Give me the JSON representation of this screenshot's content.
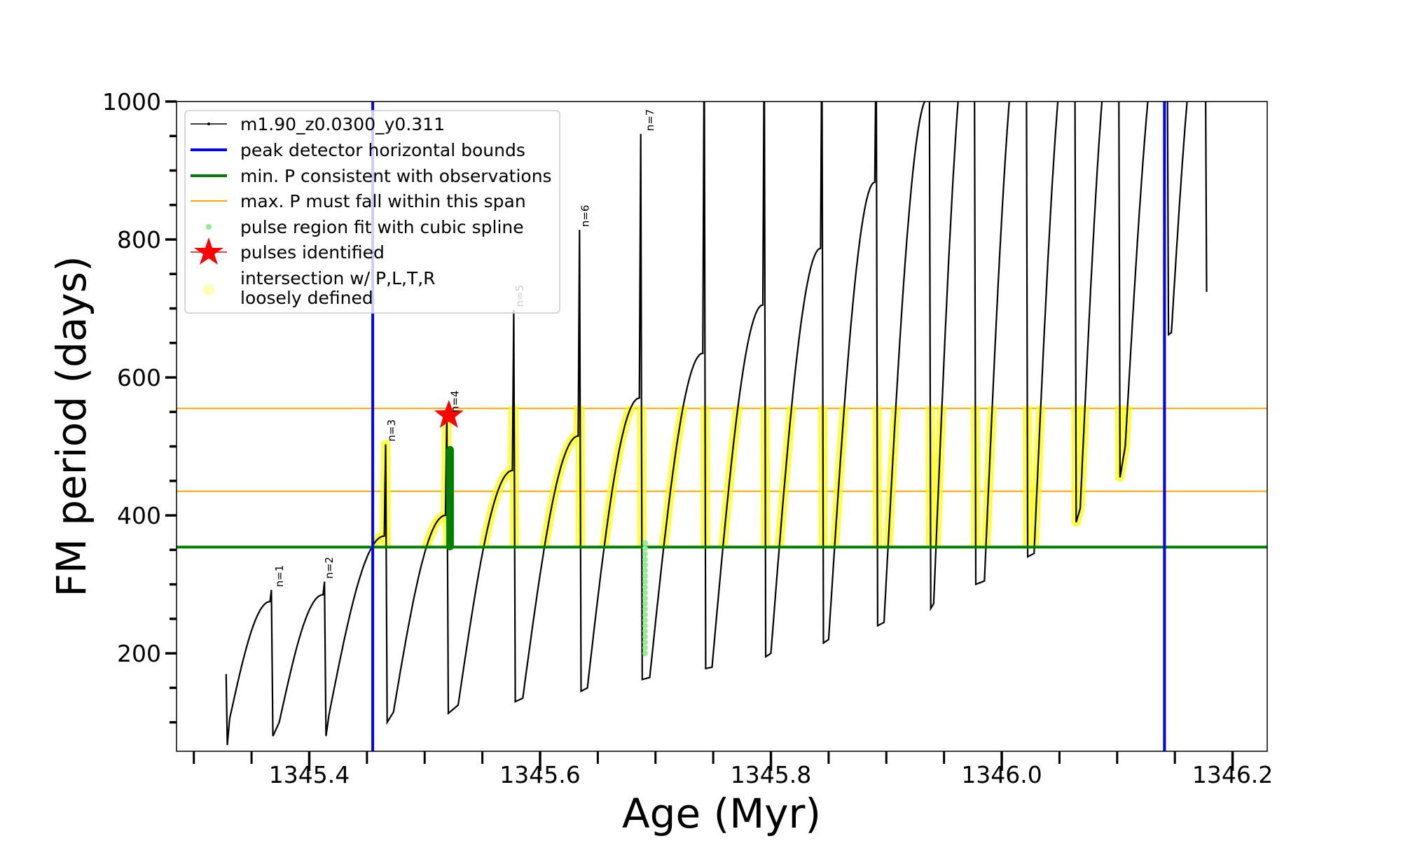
{
  "chart_data": {
    "type": "line",
    "title": "",
    "xlabel": "Age (Myr)",
    "ylabel": "FM period (days)",
    "xlim": [
      1345.285,
      1346.23
    ],
    "ylim": [
      58,
      1000
    ],
    "xticks": [
      1345.4,
      1345.6,
      1345.8,
      1346.0,
      1346.2
    ],
    "xtick_labels": [
      "1345.4",
      "1345.6",
      "1345.8",
      "1346.0",
      "1346.2"
    ],
    "xminor_step": 0.05,
    "yticks": [
      200,
      400,
      600,
      800,
      1000
    ],
    "ytick_labels": [
      "200",
      "400",
      "600",
      "800",
      "1000"
    ],
    "yminor_step": 50,
    "grid": false,
    "legend_position": "upper-left",
    "legend": [
      {
        "label": "m1.90_z0.0300_y0.311",
        "kind": "line-dot",
        "color": "#000000"
      },
      {
        "label": "peak detector horizontal bounds",
        "kind": "thick-line",
        "color": "#0000ff"
      },
      {
        "label": "min. P consistent with observations",
        "kind": "thick-line",
        "color": "#008000"
      },
      {
        "label": "max. P must fall within this span",
        "kind": "thin-line",
        "color": "#ffa500"
      },
      {
        "label": "pulse region fit with cubic spline",
        "kind": "dot",
        "color": "#90ee90"
      },
      {
        "label": "pulses identified",
        "kind": "star",
        "color": "#ff0000"
      },
      {
        "label": "intersection w/ P,L,T,R",
        "label2": "loosely defined",
        "kind": "big-dot",
        "color": "#ffffb0"
      }
    ],
    "series_start": [
      [
        1345.328,
        170
      ],
      [
        1345.329,
        67
      ],
      [
        1345.331,
        105
      ]
    ],
    "cycles_columns": [
      "age_min",
      "P_min",
      "age_peak",
      "P_peak",
      "P_spike",
      "P_drop"
    ],
    "cycles": [
      [
        1345.331,
        105,
        1345.366,
        275,
        292,
        80
      ],
      [
        1345.374,
        100,
        1345.412,
        285,
        304,
        80
      ],
      [
        1345.417,
        110,
        1345.465,
        370,
        503,
        100
      ],
      [
        1345.473,
        115,
        1345.518,
        400,
        545,
        113
      ],
      [
        1345.529,
        125,
        1345.576,
        465,
        698,
        130
      ],
      [
        1345.585,
        135,
        1345.633,
        515,
        814,
        145
      ],
      [
        1345.641,
        150,
        1345.686,
        570,
        953,
        162
      ],
      [
        1345.695,
        165,
        1345.741,
        635,
        1100,
        178
      ],
      [
        1345.749,
        180,
        1345.793,
        705,
        1100,
        195
      ],
      [
        1345.8,
        200,
        1345.843,
        787,
        1100,
        215
      ],
      [
        1345.85,
        220,
        1345.89,
        883,
        1100,
        240
      ],
      [
        1345.898,
        245,
        1345.936,
        1005,
        1100,
        265
      ],
      [
        1345.941,
        272,
        1345.975,
        1150,
        1150,
        300
      ],
      [
        1345.985,
        305,
        1346.02,
        1150,
        1150,
        340
      ],
      [
        1346.028,
        345,
        1346.062,
        1150,
        1150,
        390
      ],
      [
        1346.068,
        410,
        1346.1,
        1150,
        1150,
        455
      ],
      [
        1346.107,
        500,
        1346.142,
        1150,
        1150,
        662
      ],
      [
        1346.147,
        665,
        1346.175,
        1150,
        1150,
        724
      ]
    ],
    "peak_detector_bounds": [
      1345.455,
      1346.141
    ],
    "min_P_observed": 354,
    "max_P_span": [
      435,
      555
    ],
    "spline_fit_region": {
      "age": 1345.691,
      "P_range": [
        200,
        360
      ]
    },
    "identified_pulse_fit": {
      "age": 1345.522,
      "P_range": [
        355,
        495
      ]
    },
    "pulses_identified": [
      {
        "age": 1345.521,
        "P": 545
      }
    ],
    "annotations": [
      {
        "text": "n=1",
        "age": 1345.37,
        "P": 292,
        "muted": false
      },
      {
        "text": "n=2",
        "age": 1345.413,
        "P": 304,
        "muted": false
      },
      {
        "text": "n=3",
        "age": 1345.467,
        "P": 503,
        "muted": false
      },
      {
        "text": "n=4",
        "age": 1345.522,
        "P": 545,
        "muted": false
      },
      {
        "text": "n=5",
        "age": 1345.578,
        "P": 698,
        "muted": true
      },
      {
        "text": "n=6",
        "age": 1345.635,
        "P": 814,
        "muted": false
      },
      {
        "text": "n=7",
        "age": 1345.691,
        "P": 953,
        "muted": false
      }
    ]
  }
}
